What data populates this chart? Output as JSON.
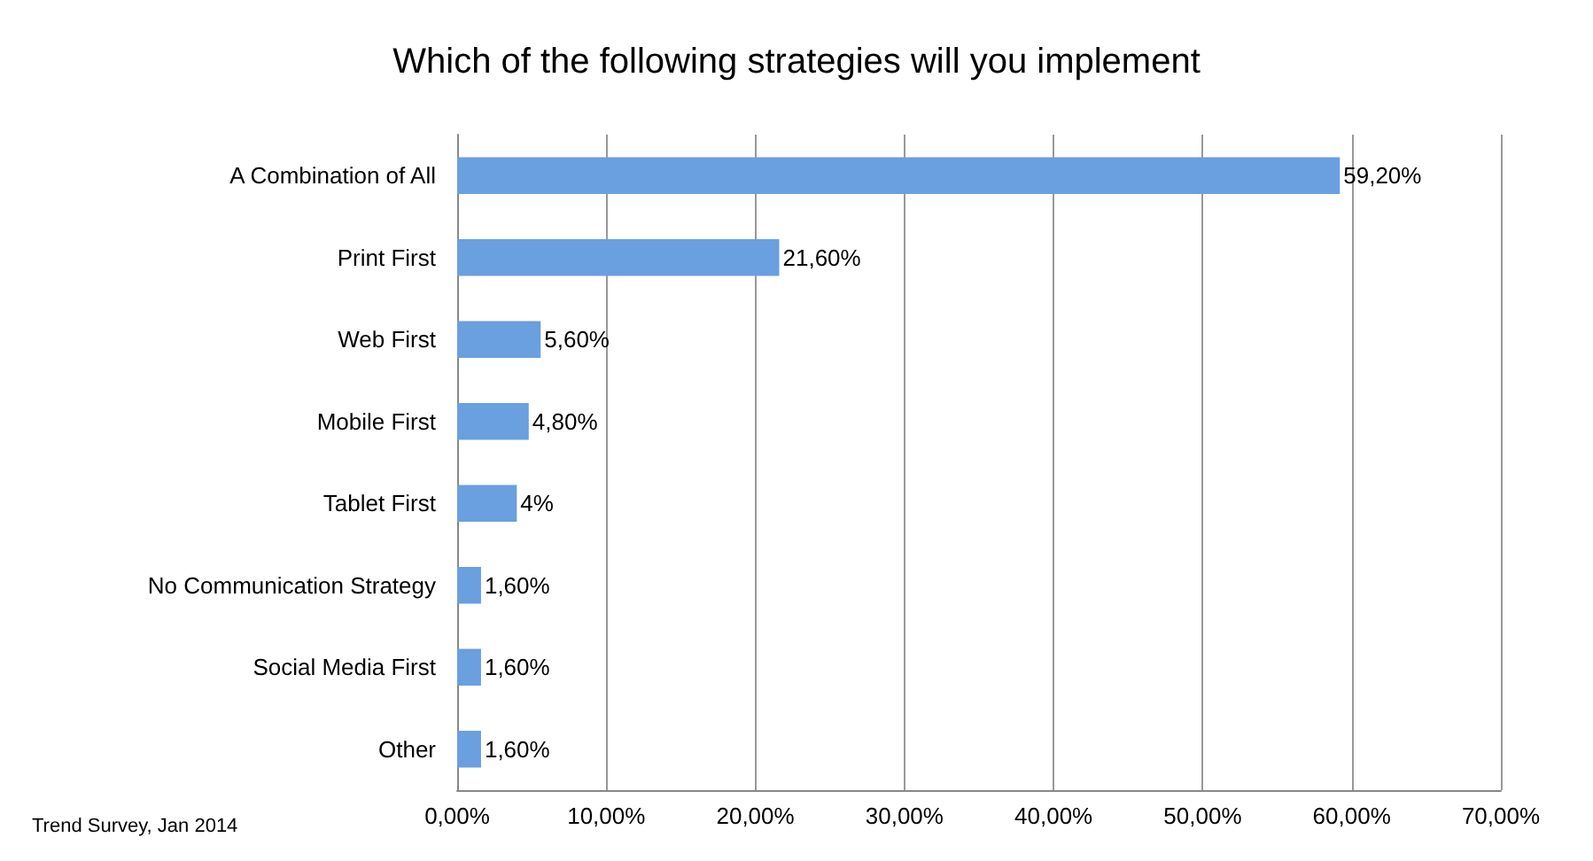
{
  "chart_data": {
    "type": "bar",
    "orientation": "horizontal",
    "title": "Which of the following strategies will you implement",
    "categories": [
      "A Combination of All",
      "Print First",
      "Web First",
      "Mobile First",
      "Tablet First",
      "No Communication Strategy",
      "Social Media First",
      "Other"
    ],
    "values": [
      59.2,
      21.6,
      5.6,
      4.8,
      4,
      1.6,
      1.6,
      1.6
    ],
    "value_labels": [
      "59,20%",
      "21,60%",
      "5,60%",
      "4,80%",
      "4%",
      "1,60%",
      "1,60%",
      "1,60%"
    ],
    "color": "#6a9fe0",
    "xlim": [
      0,
      70
    ],
    "xticks": [
      {
        "value": 0,
        "label": "0,00%"
      },
      {
        "value": 10,
        "label": "10,00%"
      },
      {
        "value": 20,
        "label": "20,00%"
      },
      {
        "value": 30,
        "label": "30,00%"
      },
      {
        "value": 40,
        "label": "40,00%"
      },
      {
        "value": 50,
        "label": "50,00%"
      },
      {
        "value": 60,
        "label": "60,00%"
      },
      {
        "value": 70,
        "label": "70,00%"
      }
    ],
    "grid": "x",
    "annotations": [
      "Trend Survey, Jan 2014"
    ]
  }
}
